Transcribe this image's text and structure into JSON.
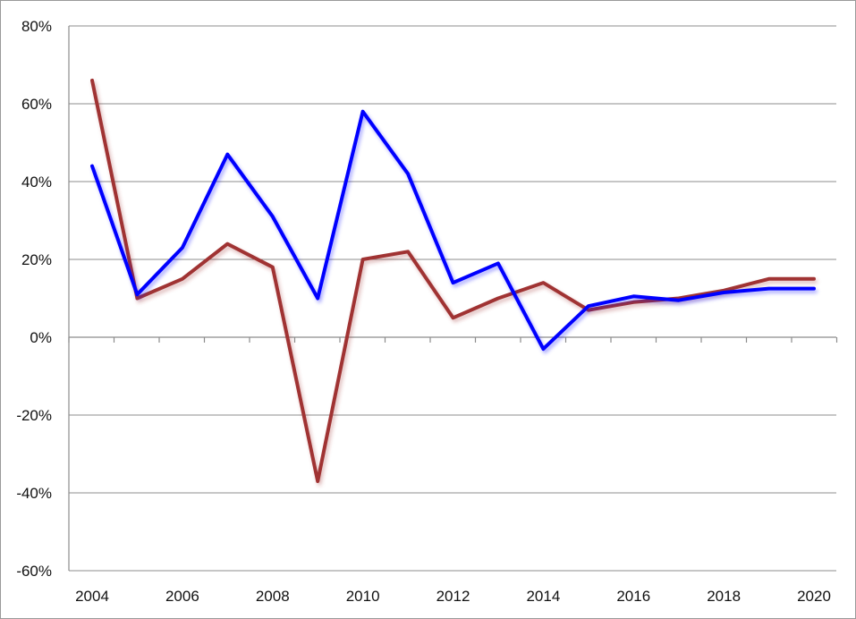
{
  "chart_data": {
    "type": "line",
    "title": "",
    "xlabel": "",
    "ylabel": "",
    "x": [
      2004,
      2005,
      2006,
      2007,
      2008,
      2009,
      2010,
      2011,
      2012,
      2013,
      2014,
      2015,
      2016,
      2017,
      2018,
      2019,
      2020
    ],
    "x_tick_labels": [
      "2004",
      "2006",
      "2008",
      "2010",
      "2012",
      "2014",
      "2016",
      "2018",
      "2020"
    ],
    "y_tick_labels": [
      "80%",
      "60%",
      "40%",
      "20%",
      "0%",
      "-20%",
      "-40%",
      "-60%"
    ],
    "y_ticks": [
      80,
      60,
      40,
      20,
      0,
      -20,
      -40,
      -60
    ],
    "ylim": [
      -60,
      80
    ],
    "xlim": [
      2004,
      2020
    ],
    "grid": "horizontal",
    "legend": "none",
    "series": [
      {
        "color": "#0000ff",
        "values": [
          44,
          11,
          23,
          47,
          31,
          10,
          58,
          42,
          14,
          19,
          -3,
          8,
          10.5,
          9.5,
          11.5,
          12.5,
          12.5
        ]
      },
      {
        "color": "#a03333",
        "values": [
          66,
          10,
          15,
          24,
          18,
          -37,
          20,
          22,
          5,
          10,
          14,
          7,
          9,
          10,
          12,
          15,
          15
        ]
      }
    ]
  }
}
